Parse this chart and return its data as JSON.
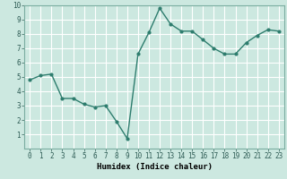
{
  "x": [
    0,
    1,
    2,
    3,
    4,
    5,
    6,
    7,
    8,
    9,
    10,
    11,
    12,
    13,
    14,
    15,
    16,
    17,
    18,
    19,
    20,
    21,
    22,
    23
  ],
  "y": [
    4.8,
    5.1,
    5.2,
    3.5,
    3.5,
    3.1,
    2.9,
    3.0,
    1.9,
    0.7,
    6.6,
    8.1,
    9.8,
    8.7,
    8.2,
    8.2,
    7.6,
    7.0,
    6.6,
    6.6,
    7.4,
    7.9,
    8.3,
    8.2
  ],
  "xlabel": "Humidex (Indice chaleur)",
  "ylim": [
    0,
    10
  ],
  "xlim": [
    -0.5,
    23.5
  ],
  "line_color": "#2e7d6e",
  "bg_color": "#cce8e0",
  "grid_color": "#ffffff",
  "tick_labels": [
    "0",
    "1",
    "2",
    "3",
    "4",
    "5",
    "6",
    "7",
    "8",
    "9",
    "10",
    "11",
    "12",
    "13",
    "14",
    "15",
    "16",
    "17",
    "18",
    "19",
    "20",
    "21",
    "22",
    "23"
  ],
  "yticks": [
    1,
    2,
    3,
    4,
    5,
    6,
    7,
    8,
    9,
    10
  ],
  "marker": "o",
  "marker_size": 2.0,
  "linewidth": 1.0,
  "xlabel_fontsize": 6.5,
  "tick_fontsize": 5.5
}
